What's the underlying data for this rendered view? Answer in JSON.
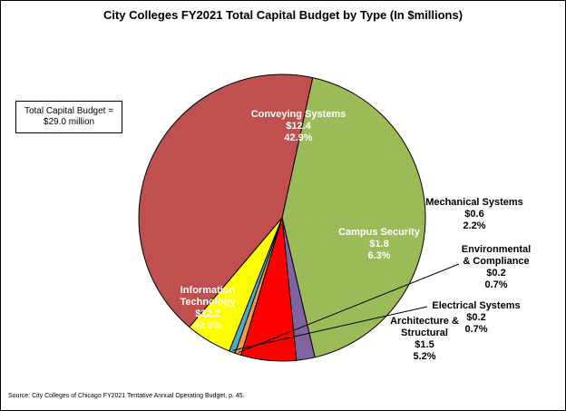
{
  "chart_data": {
    "type": "pie",
    "title": "City Colleges FY2021 Total Capital Budget by Type (In $millions)",
    "annotation": {
      "line1": "Total Capital Budget =",
      "line2": "$29.0 million"
    },
    "source": "Source: City Colleges of Chicago FY2021 Tentative Annual Operating Budget, p. 45.",
    "slices": [
      {
        "label": [
          "Conveying Systems"
        ],
        "value_label": "$12.4",
        "pct_label": "42.9%",
        "value": 12.4,
        "percent": 42.9,
        "color": "#9BBB59",
        "text_color": "#ffffff"
      },
      {
        "label": [
          "Mechanical Systems"
        ],
        "value_label": "$0.6",
        "pct_label": "2.2%",
        "value": 0.6,
        "percent": 2.2,
        "color": "#8064A2",
        "text_color": "#000000"
      },
      {
        "label": [
          "Campus Security"
        ],
        "value_label": "$1.8",
        "pct_label": "6.3%",
        "value": 1.8,
        "percent": 6.3,
        "color": "#FF0000",
        "text_color": "#ffffff"
      },
      {
        "label": [
          "Environmental",
          "& Compliance"
        ],
        "value_label": "$0.2",
        "pct_label": "0.7%",
        "value": 0.2,
        "percent": 0.7,
        "color": "#F79646",
        "text_color": "#000000"
      },
      {
        "label": [
          "Electrical Systems"
        ],
        "value_label": "$0.2",
        "pct_label": "0.7%",
        "value": 0.2,
        "percent": 0.7,
        "color": "#4BACC6",
        "text_color": "#000000"
      },
      {
        "label": [
          "Architecture &",
          "Structural"
        ],
        "value_label": "$1.5",
        "pct_label": "5.2%",
        "value": 1.5,
        "percent": 5.2,
        "color": "#FFFF00",
        "text_color": "#000000"
      },
      {
        "label": [
          "Information",
          "Technology"
        ],
        "value_label": "$12.2",
        "pct_label": "42.0%",
        "value": 12.2,
        "percent": 42.0,
        "color": "#C0504D",
        "text_color": "#ffffff"
      }
    ]
  }
}
